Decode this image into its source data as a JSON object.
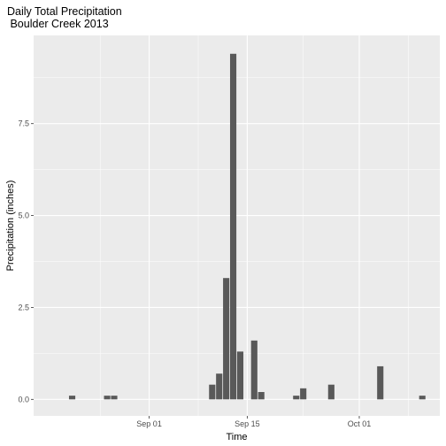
{
  "chart_data": {
    "type": "bar",
    "title": "Daily Total Precipitation\n Boulder Creek 2013",
    "xlabel": "Time",
    "ylabel": "Precipitation (inches)",
    "x_ticks": [
      {
        "date": "2013-09-01",
        "label": "Sep 01"
      },
      {
        "date": "2013-09-15",
        "label": "Sep 15"
      },
      {
        "date": "2013-10-01",
        "label": "Oct 01"
      }
    ],
    "y_ticks": [
      {
        "value": 0.0,
        "label": "0.0"
      },
      {
        "value": 2.5,
        "label": "2.5"
      },
      {
        "value": 5.0,
        "label": "5.0"
      },
      {
        "value": 7.5,
        "label": "7.5"
      }
    ],
    "xlim": [
      "2013-08-21",
      "2013-10-07"
    ],
    "ylim": [
      -0.45,
      9.9
    ],
    "grid": true,
    "bars": [
      {
        "date": "2013-08-21",
        "value": 0.1
      },
      {
        "date": "2013-08-26",
        "value": 0.1
      },
      {
        "date": "2013-08-27",
        "value": 0.1
      },
      {
        "date": "2013-09-10",
        "value": 0.4
      },
      {
        "date": "2013-09-11",
        "value": 0.7
      },
      {
        "date": "2013-09-12",
        "value": 3.3
      },
      {
        "date": "2013-09-13",
        "value": 9.4
      },
      {
        "date": "2013-09-14",
        "value": 1.3
      },
      {
        "date": "2013-09-16",
        "value": 1.6
      },
      {
        "date": "2013-09-17",
        "value": 0.2
      },
      {
        "date": "2013-09-22",
        "value": 0.1
      },
      {
        "date": "2013-09-23",
        "value": 0.3
      },
      {
        "date": "2013-09-27",
        "value": 0.4
      },
      {
        "date": "2013-10-04",
        "value": 0.9
      },
      {
        "date": "2013-10-10",
        "value": 0.1
      }
    ],
    "colors": {
      "panel": "#ebebeb",
      "grid": "#ffffff",
      "bar": "#595959"
    }
  }
}
